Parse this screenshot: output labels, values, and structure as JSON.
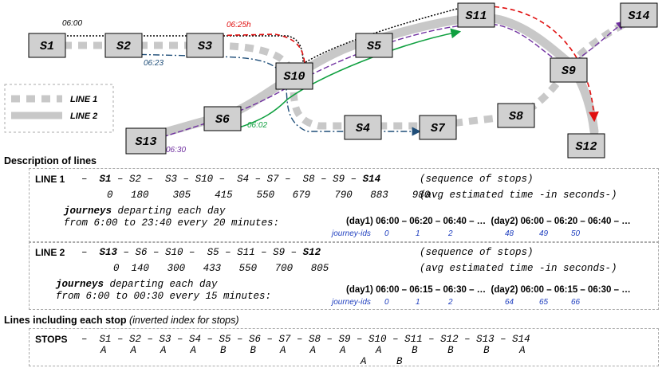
{
  "stops": {
    "S1": "S1",
    "S2": "S2",
    "S3": "S3",
    "S4": "S4",
    "S5": "S5",
    "S6": "S6",
    "S7": "S7",
    "S8": "S8",
    "S9": "S9",
    "S10": "S10",
    "S11": "S11",
    "S12": "S12",
    "S13": "S13",
    "S14": "S14"
  },
  "time_labels": {
    "t0600": "06:00",
    "t0625": "06:25h",
    "t0623": "06:23",
    "t0602": "06:02",
    "t0630": "06:30"
  },
  "legend": {
    "line1": "LINE 1",
    "line2": "LINE 2"
  },
  "colors": {
    "line_gray": "#c8c8c8",
    "journey_black": "#000000",
    "journey_red": "#e01010",
    "journey_green": "#10a040",
    "journey_purple": "#7030a0",
    "journey_blue": "#1f4e79",
    "time_blue": "#1f3fbf"
  },
  "description": {
    "heading": "Description of lines",
    "line1": {
      "name": "LINE 1",
      "sequence": [
        "S1",
        "S2",
        "S3",
        "S10",
        "S4",
        "S7",
        "S8",
        "S9",
        "S14"
      ],
      "sequence_note": "(sequence of stops)",
      "times": [
        "0",
        "180",
        "305",
        "415",
        "550",
        "679",
        "790",
        "883",
        "980"
      ],
      "times_note": "(avg estimated time -in seconds-)",
      "journeys_bold": "journeys",
      "journeys_rest": " departing each day",
      "journeys_line2": "from 6:00 to 23:40 every 20 minutes:",
      "schedule": "(day1) 06:00 – 06:20 – 06:40 – …  (day2) 06:00 – 06:20 – 06:40 – …",
      "ids_label": "journey-ids",
      "ids": [
        "0",
        "1",
        "2",
        "48",
        "49",
        "50"
      ]
    },
    "line2": {
      "name": "LINE 2",
      "sequence": [
        "S13",
        "S6",
        "S10",
        "S5",
        "S11",
        "S9",
        "S12"
      ],
      "sequence_note": "(sequence of stops)",
      "times": [
        "0",
        "140",
        "300",
        "433",
        "550",
        "700",
        "805"
      ],
      "times_note": "(avg estimated time -in seconds-)",
      "journeys_bold": "journeys",
      "journeys_rest": " departing each day",
      "journeys_line2": "from 6:00 to 00:30 every 15 minutes:",
      "schedule": "(day1) 06:00 – 06:15 – 06:30 – …  (day2) 06:00 – 06:15 – 06:30 – …",
      "ids_label": "journey-ids",
      "ids": [
        "0",
        "1",
        "2",
        "64",
        "65",
        "66"
      ]
    }
  },
  "inverted": {
    "heading": "Lines including each stop",
    "heading_note": "(inverted index for stops)",
    "label": "STOPS",
    "stops_row": "–  S1 – S2 – S3 – S4 – S5 – S6 – S7 – S8 – S9 – S10 – S11 – S12 – S13 – S14",
    "lines_row1": "A    A    A    A    B    B    A    A    A     A     B     B     B     A",
    "lines_row2": "A     B"
  }
}
